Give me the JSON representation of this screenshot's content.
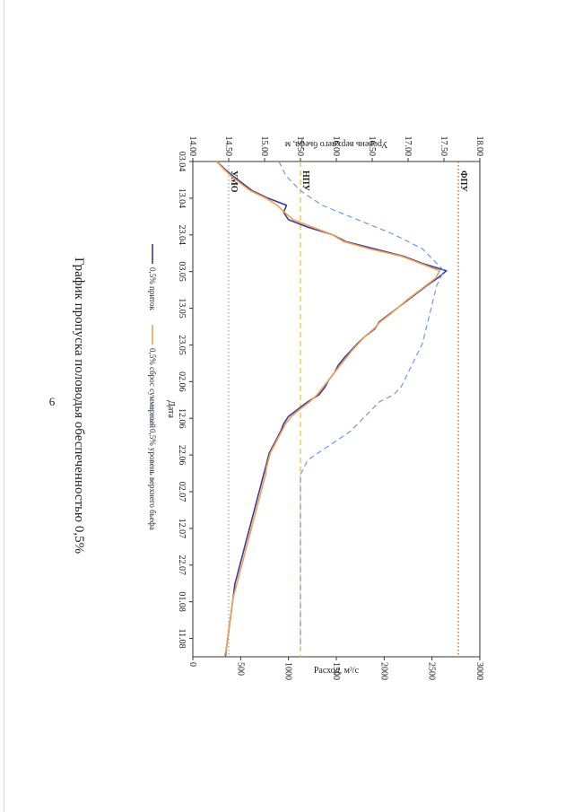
{
  "page_number": "6",
  "chart_data": {
    "type": "line",
    "title": "График пропуска половодья обеспеченностью 0,5%",
    "xlabel": "Дата",
    "ylabel": "Расход, м³/с",
    "y2label": "Уровень верхнего бьефа, м",
    "x_ticks": [
      "03.04",
      "13.04",
      "23.04",
      "03.05",
      "13.05",
      "23.05",
      "02.06",
      "12.06",
      "22.06",
      "02.07",
      "12.07",
      "22.07",
      "01.08",
      "11.08"
    ],
    "xlim": [
      0,
      136
    ],
    "ylim": [
      0,
      3000
    ],
    "y_ticks": [
      0,
      500,
      1000,
      1500,
      2000,
      2500,
      3000
    ],
    "y2lim": [
      14.0,
      18.0
    ],
    "y2_ticks": [
      "14.00",
      "14.50",
      "15.00",
      "15.50",
      "16.00",
      "16.50",
      "17.00",
      "17.50",
      "18.00"
    ],
    "grid": false,
    "legend_position": "bottom",
    "series": [
      {
        "name": "0,5% приток",
        "color": "#3a3aa0",
        "axis": "left",
        "style": "solid",
        "x": [
          0,
          2,
          4,
          6,
          8,
          10,
          12,
          14,
          16,
          18,
          20,
          22,
          24,
          26,
          28,
          30,
          32,
          34,
          36,
          38,
          40,
          42,
          44,
          46,
          48,
          50,
          52,
          54,
          56,
          58,
          60,
          62,
          64,
          66,
          68,
          70,
          72,
          74,
          76,
          78,
          80,
          82,
          84,
          86,
          88,
          90,
          92,
          94,
          96,
          98,
          100,
          102,
          104,
          106,
          108,
          110,
          112,
          114,
          116,
          118,
          120,
          122,
          124,
          126,
          128,
          130,
          132,
          134,
          136
        ],
        "y": [
          250,
          330,
          420,
          520,
          620,
          780,
          980,
          950,
          1000,
          1200,
          1450,
          1600,
          1900,
          2200,
          2400,
          2650,
          2560,
          2450,
          2350,
          2250,
          2150,
          2050,
          1950,
          1900,
          1800,
          1720,
          1650,
          1580,
          1520,
          1480,
          1420,
          1380,
          1320,
          1200,
          1100,
          1000,
          950,
          920,
          880,
          840,
          800,
          780,
          760,
          740,
          720,
          700,
          680,
          660,
          640,
          620,
          600,
          580,
          560,
          540,
          520,
          500,
          480,
          460,
          440,
          430,
          420,
          410,
          400,
          390,
          380,
          370,
          360,
          350,
          340
        ]
      },
      {
        "name": "0,5% сброс суммарный",
        "color": "#f0a050",
        "axis": "left",
        "style": "solid",
        "x": [
          0,
          2,
          4,
          6,
          8,
          10,
          12,
          14,
          16,
          18,
          20,
          22,
          24,
          26,
          28,
          30,
          32,
          34,
          36,
          38,
          40,
          42,
          44,
          46,
          48,
          50,
          52,
          54,
          56,
          58,
          60,
          62,
          64,
          66,
          68,
          70,
          72,
          74,
          76,
          78,
          80,
          82,
          84,
          86,
          88,
          90,
          92,
          94,
          96,
          98,
          100,
          102,
          104,
          106,
          108,
          110,
          112,
          114,
          116,
          118,
          120,
          122,
          124,
          126,
          128,
          130,
          132,
          134,
          136
        ],
        "y": [
          250,
          320,
          400,
          500,
          600,
          760,
          880,
          960,
          1050,
          1250,
          1450,
          1580,
          1850,
          2180,
          2380,
          2580,
          2540,
          2440,
          2340,
          2240,
          2150,
          2060,
          1960,
          1890,
          1800,
          1730,
          1660,
          1600,
          1540,
          1480,
          1420,
          1360,
          1300,
          1220,
          1120,
          1030,
          970,
          930,
          890,
          850,
          810,
          790,
          770,
          760,
          740,
          720,
          700,
          680,
          660,
          640,
          620,
          600,
          580,
          560,
          540,
          520,
          500,
          480,
          460,
          440,
          420,
          410,
          400,
          390,
          380,
          370,
          360,
          350,
          330
        ]
      },
      {
        "name": "0,5% уровень верхнего бьефа",
        "color": "#6a9be0",
        "axis": "right",
        "style": "dashed",
        "x": [
          0,
          4,
          8,
          12,
          16,
          20,
          24,
          28,
          30,
          34,
          38,
          42,
          46,
          50,
          54,
          58,
          62,
          64,
          66,
          70,
          74,
          78,
          82,
          86,
          90,
          94,
          98,
          102,
          106,
          110,
          114,
          118,
          122,
          126,
          130,
          134
        ],
        "y": [
          15.2,
          15.3,
          15.5,
          15.8,
          16.3,
          16.8,
          17.2,
          17.4,
          17.5,
          17.4,
          17.35,
          17.3,
          17.25,
          17.2,
          17.1,
          17.0,
          16.9,
          16.8,
          16.6,
          16.4,
          16.2,
          15.9,
          15.6,
          15.5,
          15.5,
          15.5,
          15.5,
          15.5,
          15.5,
          15.5,
          15.5,
          15.5,
          15.5,
          15.5,
          15.5,
          15.5
        ]
      }
    ],
    "reference_lines": [
      {
        "label": "ФПУ",
        "axis": "right",
        "value": 17.7,
        "color": "#c0601a",
        "style": "dotted"
      },
      {
        "label": "НПУ",
        "axis": "right",
        "value": 15.5,
        "color": "#e8c840",
        "style": "dashed"
      },
      {
        "label": "УМО",
        "axis": "right",
        "value": 14.5,
        "color": "#aaaaaa",
        "style": "dotted"
      }
    ]
  }
}
